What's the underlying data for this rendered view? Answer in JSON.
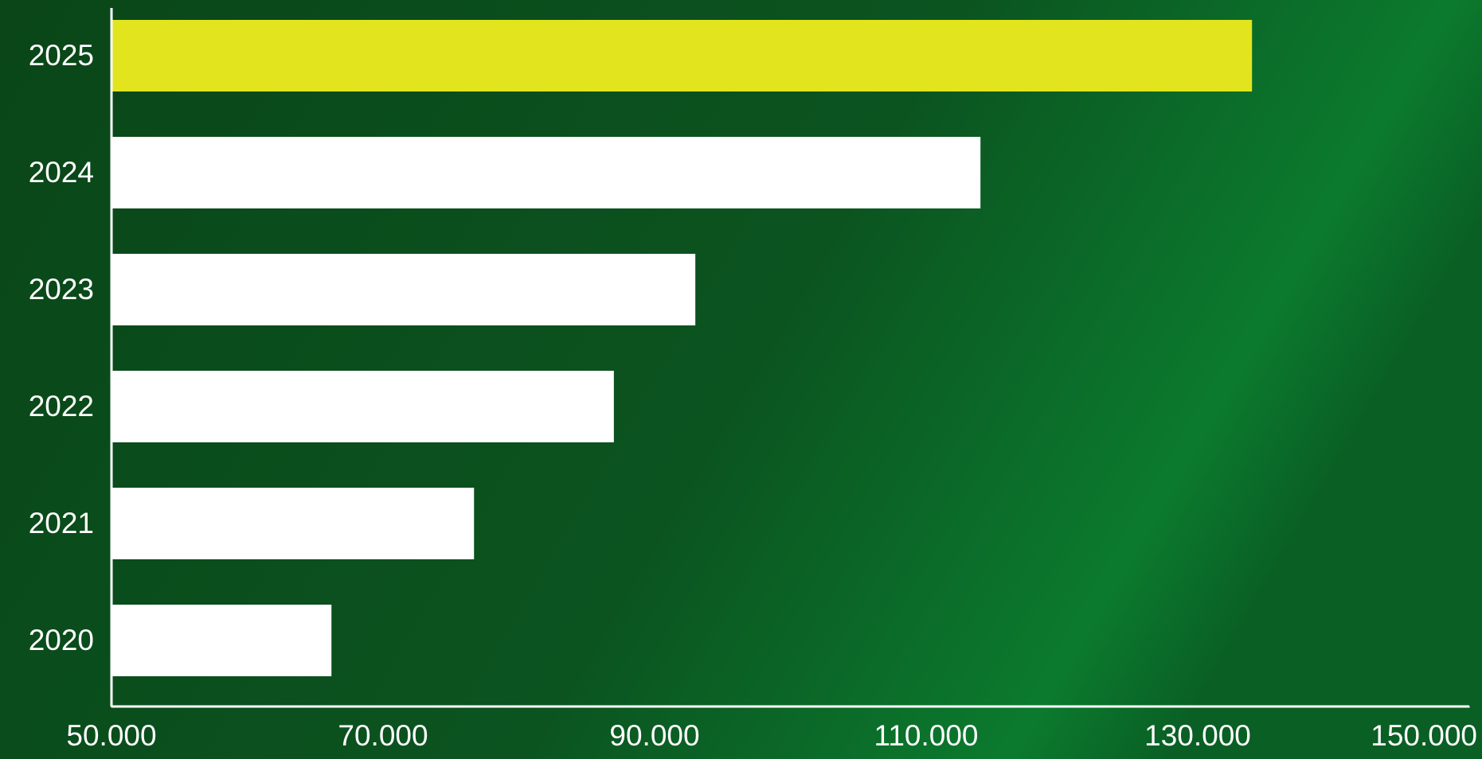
{
  "chart_data": {
    "type": "bar",
    "orientation": "horizontal",
    "categories": [
      "2020",
      "2021",
      "2022",
      "2023",
      "2024",
      "2025"
    ],
    "values": [
      66200,
      76700,
      87000,
      93000,
      114000,
      134000
    ],
    "colors": [
      "#ffffff",
      "#ffffff",
      "#ffffff",
      "#ffffff",
      "#ffffff",
      "#e2e41e"
    ],
    "xlim": [
      50000,
      150000
    ],
    "xticks": [
      {
        "value": 50000,
        "label": "50.000"
      },
      {
        "value": 70000,
        "label": "70.000"
      },
      {
        "value": 90000,
        "label": "90.000"
      },
      {
        "value": 110000,
        "label": "110.000"
      },
      {
        "value": 130000,
        "label": "130.000"
      },
      {
        "value": 150000,
        "label": "150.000"
      }
    ],
    "grid": false
  }
}
